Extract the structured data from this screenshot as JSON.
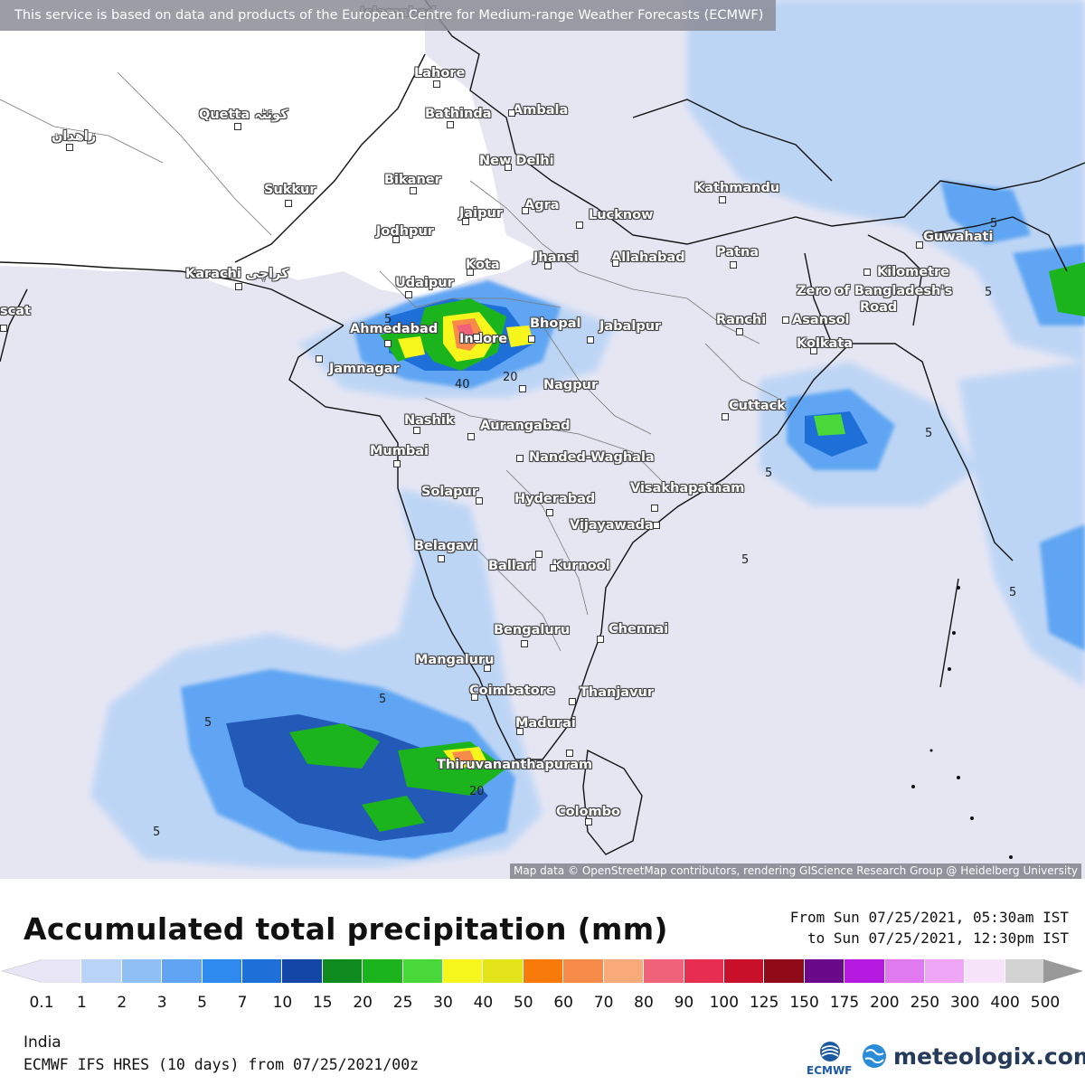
{
  "map": {
    "attribution_top": "This service is based on data and products of the European Centre for Medium-range Weather Forecasts (ECMWF)",
    "attribution_bottom": "Map data © OpenStreetMap contributors, rendering GIScience Research Group @ Heidelberg University",
    "cities": [
      {
        "name": "Islamabad",
        "label": "Islamabad"
      },
      {
        "name": "Lahore",
        "label": "Lahore"
      },
      {
        "name": "Bathinda",
        "label": "Bathinda"
      },
      {
        "name": "Ambala",
        "label": "Ambala"
      },
      {
        "name": "Quetta",
        "label": "Quetta کوئٹہ"
      },
      {
        "name": "Zahedan",
        "label": "زاهدان"
      },
      {
        "name": "New Delhi",
        "label": "New Delhi"
      },
      {
        "name": "Bikaner",
        "label": "Bikaner"
      },
      {
        "name": "Sukkur",
        "label": "Sukkur"
      },
      {
        "name": "Jaipur",
        "label": "Jaipur"
      },
      {
        "name": "Agra",
        "label": "Agra"
      },
      {
        "name": "Lucknow",
        "label": "Lucknow"
      },
      {
        "name": "Kathmandu",
        "label": "Kathmandu"
      },
      {
        "name": "Jodhpur",
        "label": "Jodhpur"
      },
      {
        "name": "Guwahati",
        "label": "Guwahati"
      },
      {
        "name": "Patna",
        "label": "Patna"
      },
      {
        "name": "Kota",
        "label": "Kota"
      },
      {
        "name": "Jhansi",
        "label": "Jhansi"
      },
      {
        "name": "Allahabad",
        "label": "Allahabad"
      },
      {
        "name": "Karachi",
        "label": "Karachi کراچی"
      },
      {
        "name": "Udaipur",
        "label": "Udaipur"
      },
      {
        "name": "Muscat",
        "label": "scat"
      },
      {
        "name": "Kilometre Zero",
        "label": "Kilometre"
      },
      {
        "name": "Kilometre Zero 2",
        "label": "Zero of Bangladesh's"
      },
      {
        "name": "Kilometre Zero 3",
        "label": "Road"
      },
      {
        "name": "Bhopal",
        "label": "Bhopal"
      },
      {
        "name": "Jabalpur",
        "label": "Jabalpur"
      },
      {
        "name": "Ranchi",
        "label": "Ranchi"
      },
      {
        "name": "Asansol",
        "label": "Asansol"
      },
      {
        "name": "Ahmedabad",
        "label": "Ahmedabad"
      },
      {
        "name": "Indore",
        "label": "Indore"
      },
      {
        "name": "Kolkata",
        "label": "Kolkata"
      },
      {
        "name": "Jamnagar",
        "label": "Jamnagar"
      },
      {
        "name": "Nagpur",
        "label": "Nagpur"
      },
      {
        "name": "Cuttack",
        "label": "Cuttack"
      },
      {
        "name": "Nashik",
        "label": "Nashik"
      },
      {
        "name": "Aurangabad",
        "label": "Aurangabad"
      },
      {
        "name": "Mumbai",
        "label": "Mumbai"
      },
      {
        "name": "Nanded-Waghala",
        "label": "Nanded-Waghala"
      },
      {
        "name": "Visakhapatnam",
        "label": "Visakhapatnam"
      },
      {
        "name": "Solapur",
        "label": "Solapur"
      },
      {
        "name": "Hyderabad",
        "label": "Hyderabad"
      },
      {
        "name": "Vijayawada",
        "label": "Vijayawada"
      },
      {
        "name": "Belagavi",
        "label": "Belagavi"
      },
      {
        "name": "Ballari",
        "label": "Ballari"
      },
      {
        "name": "Kurnool",
        "label": "Kurnool"
      },
      {
        "name": "Bengaluru",
        "label": "Bengaluru"
      },
      {
        "name": "Chennai",
        "label": "Chennai"
      },
      {
        "name": "Mangaluru",
        "label": "Mangaluru"
      },
      {
        "name": "Coimbatore",
        "label": "Coimbatore"
      },
      {
        "name": "Thanjavur",
        "label": "Thanjavur"
      },
      {
        "name": "Madurai",
        "label": "Madurai"
      },
      {
        "name": "Thiruvananthapuram",
        "label": "Thiruvananthapuram"
      },
      {
        "name": "Colombo",
        "label": "Colombo"
      }
    ],
    "contour_labels": [
      "5",
      "5",
      "20",
      "40",
      "5",
      "5",
      "5",
      "5",
      "20",
      "5",
      "5",
      "5",
      "5"
    ]
  },
  "legend": {
    "title": "Accumulated total precipitation (mm)",
    "period_from": "From Sun 07/25/2021, 05:30am IST",
    "period_to": "to Sun 07/25/2021, 12:30pm IST",
    "colors": [
      "#e8e6f6",
      "#b9d4f6",
      "#8fc0f5",
      "#5fa5f3",
      "#2f8af0",
      "#1e6fd8",
      "#1446a8",
      "#0e8a1e",
      "#1cb41c",
      "#48d83a",
      "#f6f61c",
      "#e4e41a",
      "#f87a0a",
      "#f88a4a",
      "#f8aa78",
      "#f0627a",
      "#e82e50",
      "#c8102a",
      "#900a18",
      "#6a0a8a",
      "#b41ae0",
      "#e07af0",
      "#f0a6f6",
      "#f8e4fa",
      "#d2d2d2"
    ],
    "left_arrow_color": "#e8e6f6",
    "right_arrow_color": "#999999",
    "ticks": [
      "0.1",
      "1",
      "2",
      "3",
      "5",
      "7",
      "10",
      "15",
      "20",
      "25",
      "30",
      "40",
      "50",
      "60",
      "70",
      "80",
      "90",
      "100",
      "125",
      "150",
      "175",
      "200",
      "250",
      "300",
      "400",
      "500"
    ]
  },
  "footer": {
    "region": "India",
    "model": "ECMWF IFS HRES (10 days) from 07/25/2021/00z",
    "ecmwf_label": "ECMWF",
    "brand": "meteologix.com"
  }
}
